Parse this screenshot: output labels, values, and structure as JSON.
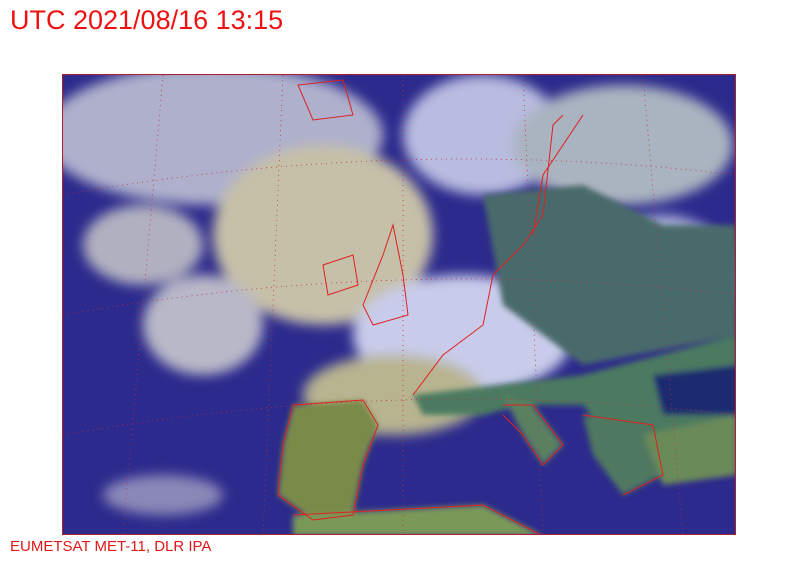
{
  "header": {
    "title": "UTC 2021/08/16 13:15"
  },
  "footer": {
    "credit": "EUMETSAT MET-11, DLR IPA"
  },
  "map": {
    "type": "satellite RGB composite",
    "region": "Europe and North Atlantic",
    "colors": {
      "ocean": "#2a2a8a",
      "cloud": "#c8c8d8",
      "land": "#4a7a5a",
      "coastline": "#e02020",
      "border": "#b02030"
    }
  }
}
